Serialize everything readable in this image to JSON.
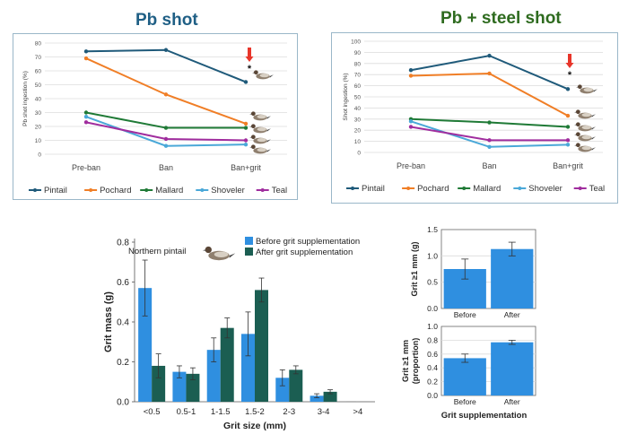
{
  "palette": {
    "pintail": "#1f5a7a",
    "pochard": "#f07e26",
    "mallard": "#1f7a36",
    "shoveler": "#4aa8d8",
    "teal": "#a02d9e",
    "before": "#2f8fe0",
    "after": "#1b5e52",
    "arrow": "#e8352a",
    "title_left": "#1f5f85",
    "title_right": "#2e6b1f"
  },
  "chart_data": [
    {
      "id": "pb",
      "type": "line",
      "title": "Pb shot",
      "ylabel": "Pb shot ingestion (%)",
      "ylim": [
        0,
        80
      ],
      "yticks": [
        0,
        10,
        20,
        30,
        40,
        50,
        60,
        70,
        80
      ],
      "categories": [
        "Pre-ban",
        "Ban",
        "Ban+grit"
      ],
      "series": [
        {
          "name": "Pintail",
          "key": "pintail",
          "values": [
            74,
            75,
            52
          ]
        },
        {
          "name": "Pochard",
          "key": "pochard",
          "values": [
            69,
            43,
            22
          ]
        },
        {
          "name": "Mallard",
          "key": "mallard",
          "values": [
            30,
            19,
            19
          ]
        },
        {
          "name": "Shoveler",
          "key": "shoveler",
          "values": [
            27,
            6,
            7
          ]
        },
        {
          "name": "Teal",
          "key": "teal",
          "values": [
            23,
            11,
            10
          ]
        }
      ],
      "annotation": "*"
    },
    {
      "id": "steel",
      "type": "line",
      "title": "Pb + steel shot",
      "ylabel": "Shot ingestion (%)",
      "ylim": [
        0,
        100
      ],
      "yticks": [
        0,
        10,
        20,
        30,
        40,
        50,
        60,
        70,
        80,
        90,
        100
      ],
      "categories": [
        "Pre-ban",
        "Ban",
        "Ban+grit"
      ],
      "series": [
        {
          "name": "Pintail",
          "key": "pintail",
          "values": [
            74,
            87,
            57
          ]
        },
        {
          "name": "Pochard",
          "key": "pochard",
          "values": [
            69,
            71,
            33
          ]
        },
        {
          "name": "Mallard",
          "key": "mallard",
          "values": [
            30,
            27,
            23
          ]
        },
        {
          "name": "Shoveler",
          "key": "shoveler",
          "values": [
            28,
            5,
            7
          ]
        },
        {
          "name": "Teal",
          "key": "teal",
          "values": [
            23,
            11,
            11
          ]
        }
      ],
      "annotation": "*"
    },
    {
      "id": "grit",
      "type": "bar",
      "xlabel": "Grit size (mm)",
      "ylabel": "Grit mass (g)",
      "ylim": [
        0,
        0.8
      ],
      "yticks": [
        0.0,
        0.2,
        0.4,
        0.6,
        0.8
      ],
      "categories": [
        "<0.5",
        "0.5-1",
        "1-1.5",
        "1.5-2",
        "2-3",
        "3-4",
        ">4"
      ],
      "series": [
        {
          "name": "Before grit supplementation",
          "key": "before",
          "values": [
            0.57,
            0.15,
            0.26,
            0.34,
            0.12,
            0.03,
            0.0
          ],
          "errors": [
            0.14,
            0.03,
            0.06,
            0.11,
            0.04,
            0.01,
            0.0
          ]
        },
        {
          "name": "After grit supplementation",
          "key": "after",
          "values": [
            0.18,
            0.14,
            0.37,
            0.56,
            0.16,
            0.05,
            0.0
          ],
          "errors": [
            0.06,
            0.03,
            0.05,
            0.06,
            0.02,
            0.01,
            0.0
          ]
        }
      ],
      "annotation": "Northern pintail"
    },
    {
      "id": "grit_mass",
      "type": "bar",
      "ylabel": "Grit ≥1 mm (g)",
      "ylim": [
        0,
        1.5
      ],
      "yticks": [
        0.0,
        0.5,
        1.0,
        1.5
      ],
      "categories": [
        "Before",
        "After"
      ],
      "values": [
        0.75,
        1.13
      ],
      "errors": [
        0.19,
        0.13
      ]
    },
    {
      "id": "grit_prop",
      "type": "bar",
      "xlabel": "Grit supplementation",
      "ylabel": "Grit ≥1 mm (proportion)",
      "ylim": [
        0,
        1.0
      ],
      "yticks": [
        0.0,
        0.2,
        0.4,
        0.6,
        0.8,
        1.0
      ],
      "categories": [
        "Before",
        "After"
      ],
      "values": [
        0.54,
        0.77
      ],
      "errors": [
        0.06,
        0.03
      ]
    }
  ]
}
